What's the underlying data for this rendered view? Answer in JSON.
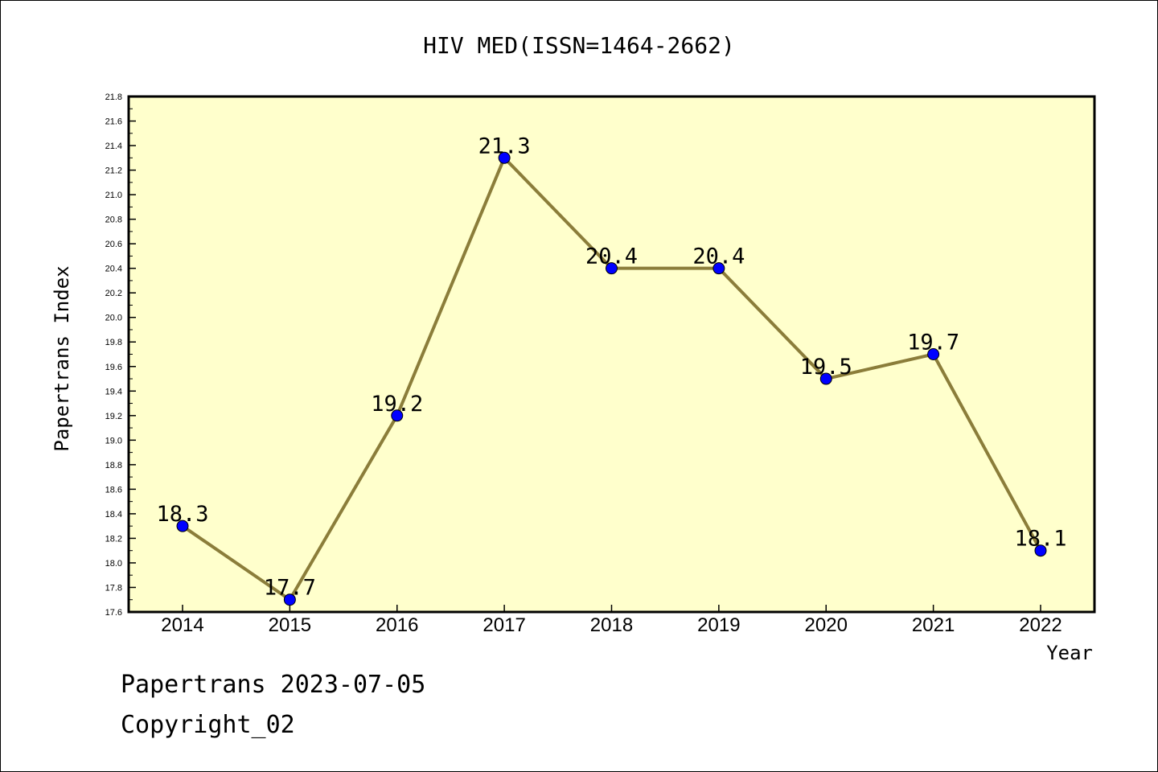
{
  "chart_data": {
    "type": "line",
    "title": "HIV MED(ISSN=1464-2662)",
    "xlabel": "Year",
    "ylabel": "Papertrans Index",
    "categories": [
      "2014",
      "2015",
      "2016",
      "2017",
      "2018",
      "2019",
      "2020",
      "2021",
      "2022"
    ],
    "values": [
      18.3,
      17.7,
      19.2,
      21.3,
      20.4,
      20.4,
      19.5,
      19.7,
      18.1
    ],
    "data_labels": [
      "18.3",
      "17.7",
      "19.2",
      "21.3",
      "20.4",
      "20.4",
      "19.5",
      "19.7",
      "18.1"
    ],
    "ylim": [
      17.6,
      21.8
    ],
    "y_ticks": [
      "17.6",
      "17.8",
      "18.0",
      "18.2",
      "18.4",
      "18.6",
      "18.8",
      "19.0",
      "19.2",
      "19.4",
      "19.6",
      "19.8",
      "20.0",
      "20.2",
      "20.4",
      "20.6",
      "20.8",
      "21.0",
      "21.2",
      "21.4",
      "21.6",
      "21.8"
    ],
    "grid": false,
    "legend": "none",
    "colors": {
      "plot_background": "#ffffcc",
      "line": "#8b7d3a",
      "marker": "#0000ff"
    }
  },
  "footer": {
    "line1": "Papertrans 2023-07-05",
    "line2": "Copyright_02"
  }
}
